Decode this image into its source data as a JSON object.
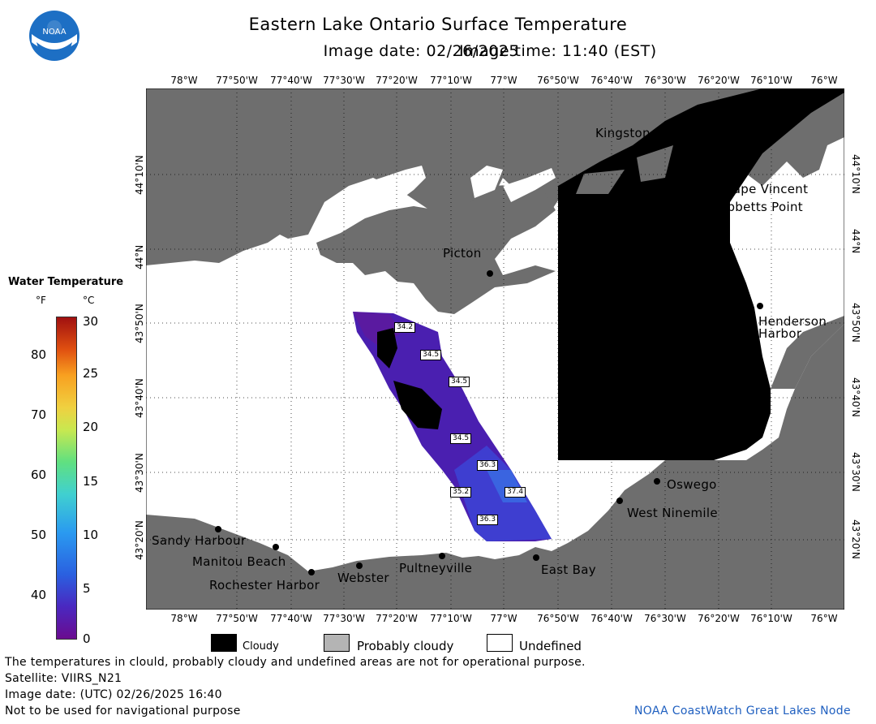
{
  "title": "Eastern Lake Ontario Surface Temperature",
  "image_date_label": "Image date: 02/26/2025",
  "image_time_label": "Image time: 11:40 (EST)",
  "logo_text": "NOAA",
  "lon_labels": [
    "78°W",
    "77°50'W",
    "77°40'W",
    "77°30'W",
    "77°20'W",
    "77°10'W",
    "77°W",
    "76°50'W",
    "76°40'W",
    "76°30'W",
    "76°20'W",
    "76°10'W",
    "76°W"
  ],
  "lat_labels": [
    "44°10'N",
    "44°N",
    "43°50'N",
    "43°40'N",
    "43°30'N",
    "43°20'N"
  ],
  "cities": {
    "kingston": "Kingston",
    "cape_vincent": "Cape Vincent",
    "tibbetts_point": "Tibbetts Point",
    "picton": "Picton",
    "henderson_harbor_1": "Henderson",
    "henderson_harbor_2": "Harbor",
    "oswego": "Oswego",
    "west_ninemile": "West Ninemile",
    "sandy_harbour": "Sandy Harbour",
    "manitou_beach": "Manitou Beach",
    "rochester_harbor": "Rochester Harbor",
    "webster": "Webster",
    "pultneyville": "Pultneyville",
    "east_bay": "East Bay"
  },
  "temp_labels": [
    "34.2",
    "34.5",
    "34.5",
    "34.5",
    "36.3",
    "35.2",
    "37.4",
    "36.3"
  ],
  "legend": {
    "title": "Water Temperature",
    "unit_f": "°F",
    "unit_c": "°C",
    "f_ticks": [
      "80",
      "70",
      "60",
      "50",
      "40"
    ],
    "c_ticks": [
      "30",
      "25",
      "20",
      "15",
      "10",
      "5",
      "0"
    ],
    "cloudy": "Cloudy",
    "probably_cloudy": "Probably cloudy",
    "undefined": "Undefined",
    "colors": {
      "cloudy": "#000000",
      "probably_cloudy": "#b4b4b4",
      "undefined": "#ffffff",
      "land": "#6e6e6e"
    }
  },
  "footer": {
    "disclaimer": "The temperatures in clould, probably cloudy and undefined areas are not for operational purpose.",
    "satellite": "Satellite: VIIRS_N21",
    "utc_date": "Image date: (UTC) 02/26/2025  16:40",
    "nav": "Not to be used for navigational purpose",
    "credit": "NOAA CoastWatch Great Lakes Node"
  }
}
